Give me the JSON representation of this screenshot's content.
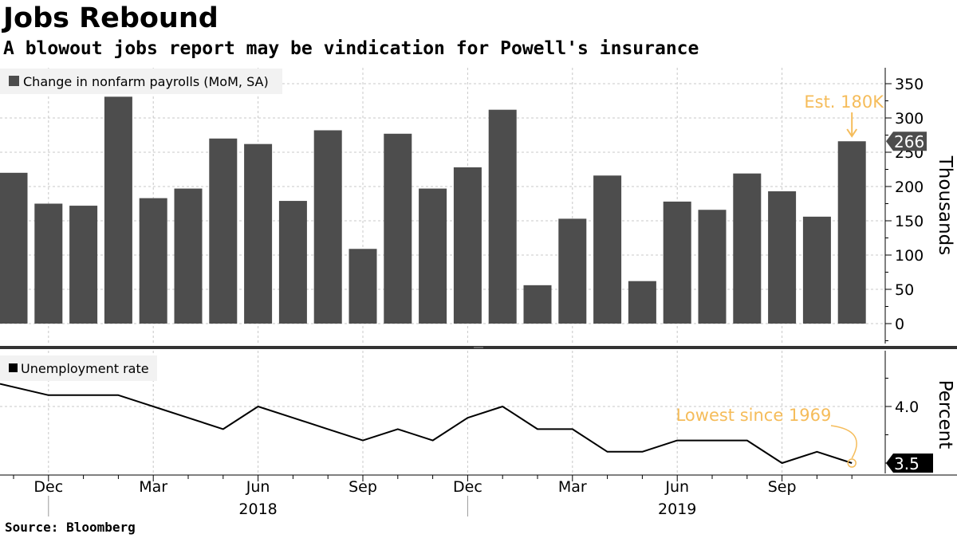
{
  "title": "Jobs Rebound",
  "subtitle": "A blowout jobs report may be vindication for Powell's insurance",
  "source": "Source:  Bloomberg",
  "colors": {
    "bar": "#4d4d4d",
    "line": "#000000",
    "annotation": "#f5bc5a",
    "grid": "#c8c8c8",
    "legend_bg": "#f2f2f2",
    "value_tag": "#000000"
  },
  "chart_data": [
    {
      "type": "bar",
      "legend": "Change in nonfarm payrolls (MoM, SA)",
      "legend_placement": "top-left",
      "ylabel": "Thousands",
      "ylim": [
        -30,
        375
      ],
      "yticks": [
        0,
        50,
        100,
        150,
        200,
        250,
        300,
        350
      ],
      "grid": true,
      "x": [
        "2017-11",
        "2017-12",
        "2018-01",
        "2018-02",
        "2018-03",
        "2018-04",
        "2018-05",
        "2018-06",
        "2018-07",
        "2018-08",
        "2018-09",
        "2018-10",
        "2018-11",
        "2018-12",
        "2019-01",
        "2019-02",
        "2019-03",
        "2019-04",
        "2019-05",
        "2019-06",
        "2019-07",
        "2019-08",
        "2019-09",
        "2019-10",
        "2019-11"
      ],
      "values": [
        220,
        175,
        172,
        331,
        183,
        197,
        270,
        262,
        179,
        282,
        109,
        277,
        197,
        228,
        312,
        56,
        153,
        216,
        62,
        178,
        166,
        219,
        193,
        156,
        266
      ],
      "last_value_label": "266",
      "annotations": [
        {
          "text": "Est. 180K",
          "x": "2019-11"
        }
      ]
    },
    {
      "type": "line",
      "legend": "Unemployment rate",
      "legend_placement": "top-left",
      "ylabel": "Percent",
      "ylim": [
        3.4,
        4.45
      ],
      "yticks": [
        4.0
      ],
      "ytick_labels": [
        "4.0"
      ],
      "grid": true,
      "x": [
        "2017-11",
        "2017-12",
        "2018-01",
        "2018-02",
        "2018-03",
        "2018-04",
        "2018-05",
        "2018-06",
        "2018-07",
        "2018-08",
        "2018-09",
        "2018-10",
        "2018-11",
        "2018-12",
        "2019-01",
        "2019-02",
        "2019-03",
        "2019-04",
        "2019-05",
        "2019-06",
        "2019-07",
        "2019-08",
        "2019-09",
        "2019-10",
        "2019-11"
      ],
      "values": [
        4.2,
        4.1,
        4.1,
        4.1,
        4.0,
        3.9,
        3.8,
        4.0,
        3.9,
        3.8,
        3.7,
        3.8,
        3.7,
        3.9,
        4.0,
        3.8,
        3.8,
        3.6,
        3.6,
        3.7,
        3.7,
        3.7,
        3.5,
        3.6,
        3.5
      ],
      "last_value_label": "3.5",
      "annotations": [
        {
          "text": "Lowest since 1969",
          "x": "2019-11"
        }
      ]
    }
  ],
  "x_axis": {
    "month_labels": [
      {
        "x": "2017-12",
        "label": "Dec"
      },
      {
        "x": "2018-03",
        "label": "Mar"
      },
      {
        "x": "2018-06",
        "label": "Jun"
      },
      {
        "x": "2018-09",
        "label": "Sep"
      },
      {
        "x": "2018-12",
        "label": "Dec"
      },
      {
        "x": "2019-03",
        "label": "Mar"
      },
      {
        "x": "2019-06",
        "label": "Jun"
      },
      {
        "x": "2019-09",
        "label": "Sep"
      }
    ],
    "year_labels": [
      {
        "x": "2018-06",
        "label": "2018"
      },
      {
        "x": "2019-06",
        "label": "2019"
      }
    ]
  }
}
